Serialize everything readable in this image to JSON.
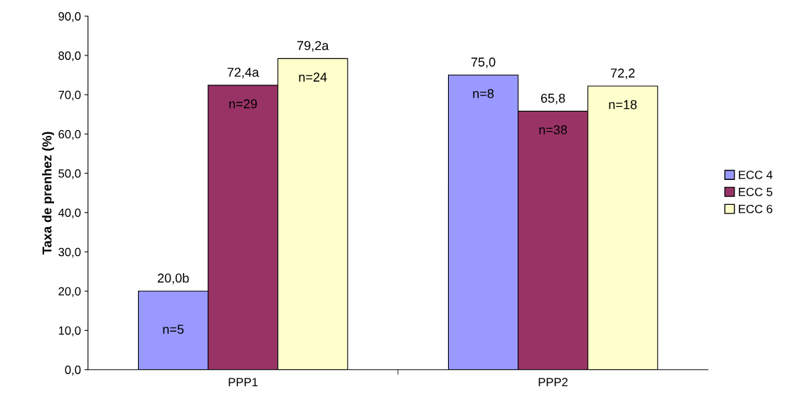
{
  "chart_data": {
    "type": "bar",
    "ylabel": "Taxa de prenhez (%)",
    "categories": [
      "PPP1",
      "PPP2"
    ],
    "series": [
      {
        "name": "ECC 4",
        "color": "#9999ff",
        "values": [
          20.0,
          75.0
        ],
        "value_labels": [
          "20,0b",
          "75,0"
        ]
      },
      {
        "name": "ECC 5",
        "color": "#993366",
        "values": [
          72.4,
          65.8
        ],
        "value_labels": [
          "72,4a",
          "65,8"
        ]
      },
      {
        "name": "ECC 6",
        "color": "#ffffcc",
        "values": [
          79.2,
          72.2
        ],
        "value_labels": [
          "79,2a",
          "72,2"
        ]
      }
    ],
    "ylim": [
      0,
      90
    ],
    "yticks": [
      {
        "value": 0,
        "label": "0,0"
      },
      {
        "value": 10,
        "label": "10,0"
      },
      {
        "value": 20,
        "label": "20,0"
      },
      {
        "value": 30,
        "label": "30,0"
      },
      {
        "value": 40,
        "label": "40,0"
      },
      {
        "value": 50,
        "label": "50,0"
      },
      {
        "value": 60,
        "label": "60,0"
      },
      {
        "value": 70,
        "label": "70,0"
      },
      {
        "value": 80,
        "label": "80,0"
      },
      {
        "value": 90,
        "label": "90,0"
      }
    ],
    "annotations": [
      "n=5",
      "n=29",
      "n=24",
      "n=8",
      "n=38",
      "n=18"
    ],
    "grid": false,
    "legend": "right"
  }
}
